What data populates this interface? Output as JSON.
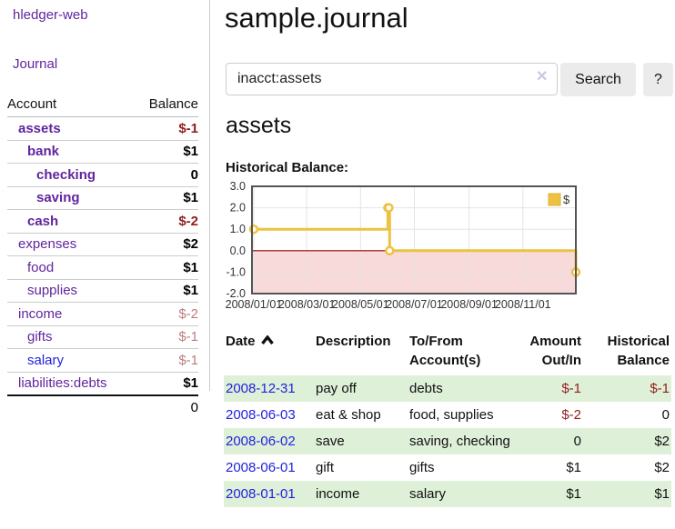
{
  "colors": {
    "link_purple": "#61259e",
    "link_blue": "#2222dd",
    "negative_strong": "#8f1d1d",
    "negative_dim": "#bd7d7d",
    "row_green": "#dff0d8",
    "chart_gold": "#edc240",
    "chart_negative_region": "#f9dada",
    "chart_zero_line": "#8f0000"
  },
  "sidebar": {
    "brand": "hledger-web",
    "journal_link": "Journal",
    "accounts_table": {
      "headers": {
        "account": "Account",
        "balance": "Balance"
      },
      "rows": [
        {
          "name": "assets",
          "level": 1,
          "bold": true,
          "balance": "$-1",
          "balance_style": "neg-strong",
          "link_color": "purple"
        },
        {
          "name": "bank",
          "level": 2,
          "bold": true,
          "balance": "$1",
          "balance_style": "pos",
          "link_color": "purple"
        },
        {
          "name": "checking",
          "level": 3,
          "bold": true,
          "balance": "0",
          "balance_style": "pos",
          "link_color": "purple"
        },
        {
          "name": "saving",
          "level": 3,
          "bold": true,
          "balance": "$1",
          "balance_style": "pos",
          "link_color": "purple"
        },
        {
          "name": "cash",
          "level": 2,
          "bold": true,
          "balance": "$-2",
          "balance_style": "neg-strong",
          "link_color": "purple"
        },
        {
          "name": "expenses",
          "level": 1,
          "bold": false,
          "balance": "$2",
          "balance_style": "pos",
          "link_color": "purple"
        },
        {
          "name": "food",
          "level": 2,
          "bold": false,
          "balance": "$1",
          "balance_style": "pos",
          "link_color": "purple"
        },
        {
          "name": "supplies",
          "level": 2,
          "bold": false,
          "balance": "$1",
          "balance_style": "pos",
          "link_color": "purple"
        },
        {
          "name": "income",
          "level": 1,
          "bold": false,
          "balance": "$-2",
          "balance_style": "neg-dim",
          "link_color": "purple"
        },
        {
          "name": "gifts",
          "level": 2,
          "bold": false,
          "balance": "$-1",
          "balance_style": "neg-dim",
          "link_color": "purple"
        },
        {
          "name": "salary",
          "level": 2,
          "bold": false,
          "balance": "$-1",
          "balance_style": "neg-dim",
          "link_color": "blue"
        },
        {
          "name": "liabilities:debts",
          "level": 1,
          "bold": false,
          "balance": "$1",
          "balance_style": "pos",
          "link_color": "purple"
        }
      ],
      "total": "0"
    }
  },
  "main": {
    "title": "sample.journal",
    "search": {
      "value": "inacct:assets",
      "clear_icon_glyph": "✕",
      "search_button_label": "Search",
      "help_button_label": "?"
    },
    "account_heading": "assets",
    "chart_label": "Historical Balance:",
    "register": {
      "headers": {
        "date": "Date",
        "description": "Description",
        "tofrom": "To/From Account(s)",
        "amount": "Amount Out/In",
        "balance": "Historical Balance"
      },
      "rows": [
        {
          "date": "2008-12-31",
          "description": "pay off",
          "tofrom": "debts",
          "amount": "$-1",
          "amount_neg": true,
          "balance": "$-1",
          "balance_neg": true,
          "shaded": true
        },
        {
          "date": "2008-06-03",
          "description": "eat & shop",
          "tofrom": "food, supplies",
          "amount": "$-2",
          "amount_neg": true,
          "balance": "0",
          "balance_neg": false,
          "shaded": false
        },
        {
          "date": "2008-06-02",
          "description": "save",
          "tofrom": "saving, checking",
          "amount": "0",
          "amount_neg": false,
          "balance": "$2",
          "balance_neg": false,
          "shaded": true
        },
        {
          "date": "2008-06-01",
          "description": "gift",
          "tofrom": "gifts",
          "amount": "$1",
          "amount_neg": false,
          "balance": "$2",
          "balance_neg": false,
          "shaded": false
        },
        {
          "date": "2008-01-01",
          "description": "income",
          "tofrom": "salary",
          "amount": "$1",
          "amount_neg": false,
          "balance": "$1",
          "balance_neg": false,
          "shaded": true
        }
      ]
    }
  },
  "chart_data": {
    "type": "line",
    "step": true,
    "title": "Historical Balance:",
    "xlabel": "",
    "ylabel": "",
    "legend": "$",
    "legend_position": "top-right",
    "grid": true,
    "ylim": [
      -2,
      3
    ],
    "y_ticks": [
      "3.0",
      "2.0",
      "1.0",
      "0.0",
      "-1.0",
      "-2.0"
    ],
    "y_tick_values": [
      3,
      2,
      1,
      0,
      -1,
      -2
    ],
    "x_domain": [
      "2007-12-30",
      "2008-12-31"
    ],
    "x_ticks": [
      {
        "date": "2008-01-01",
        "label": "2008/01/01"
      },
      {
        "date": "2008-03-01",
        "label": "2008/03/01"
      },
      {
        "date": "2008-05-01",
        "label": "2008/05/01"
      },
      {
        "date": "2008-07-01",
        "label": "2008/07/01"
      },
      {
        "date": "2008-09-01",
        "label": "2008/09/01"
      },
      {
        "date": "2008-11-01",
        "label": "2008/11/01"
      }
    ],
    "series": [
      {
        "name": "$",
        "color": "#edc240",
        "points": [
          [
            "2008-01-01",
            1
          ],
          [
            "2008-06-01",
            2
          ],
          [
            "2008-06-02",
            2
          ],
          [
            "2008-06-03",
            0
          ],
          [
            "2008-12-31",
            -1
          ]
        ]
      }
    ],
    "zero_line_color": "#8f0000",
    "negative_region_color": "#f9dada"
  }
}
